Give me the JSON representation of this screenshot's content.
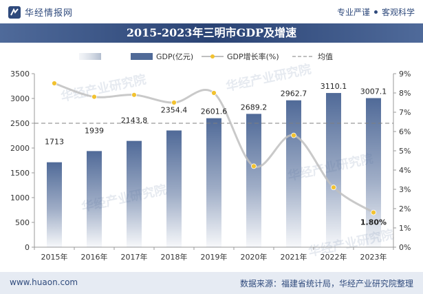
{
  "header": {
    "brand": "华经情报网",
    "tag1": "专业严谨",
    "tag2": "客观科学"
  },
  "title": "2015-2023年三明市GDP及增速",
  "footer": {
    "url": "www.huaon.com",
    "source": "数据来源：福建省统计局，华经产业研究院整理"
  },
  "watermark": "华经产业研究院",
  "chart_data": {
    "type": "bar",
    "categories": [
      "2015年",
      "2016年",
      "2017年",
      "2018年",
      "2019年",
      "2020年",
      "2021年",
      "2022年",
      "2023年"
    ],
    "series": [
      {
        "name": "GDP(亿元)",
        "type": "bar",
        "axis": "left",
        "values": [
          1713,
          1939,
          2143.8,
          2354.4,
          2601.6,
          2689.2,
          2962.7,
          3110.1,
          3007.1
        ],
        "labels": [
          "1713",
          "1939",
          "2143.8",
          "2354.4",
          "2601.6",
          "2689.2",
          "2962.7",
          "3110.1",
          "3007.1"
        ],
        "color": "#506a98"
      },
      {
        "name": "GDP增长率(%)",
        "type": "line",
        "axis": "right",
        "values": [
          8.5,
          7.8,
          7.9,
          7.5,
          8.0,
          4.2,
          5.8,
          3.1,
          1.8
        ],
        "color": "#f2c230",
        "highlight_label": "1.80%"
      },
      {
        "name": "均值",
        "type": "dashed-line",
        "axis": "left",
        "value": 2500,
        "color": "#7f7f7f"
      }
    ],
    "y_left": {
      "min": 0,
      "max": 3500,
      "ticks": [
        0,
        500,
        1000,
        1500,
        2000,
        2500,
        3000,
        3500
      ]
    },
    "y_right": {
      "min": 0,
      "max": 9,
      "ticks": [
        "0%",
        "1%",
        "2%",
        "3%",
        "4%",
        "5%",
        "6%",
        "7%",
        "8%",
        "9%"
      ]
    },
    "legend": {
      "position": "top-center",
      "items": [
        "",
        "GDP(亿元)",
        "GDP增长率(%)",
        "均值"
      ]
    }
  }
}
